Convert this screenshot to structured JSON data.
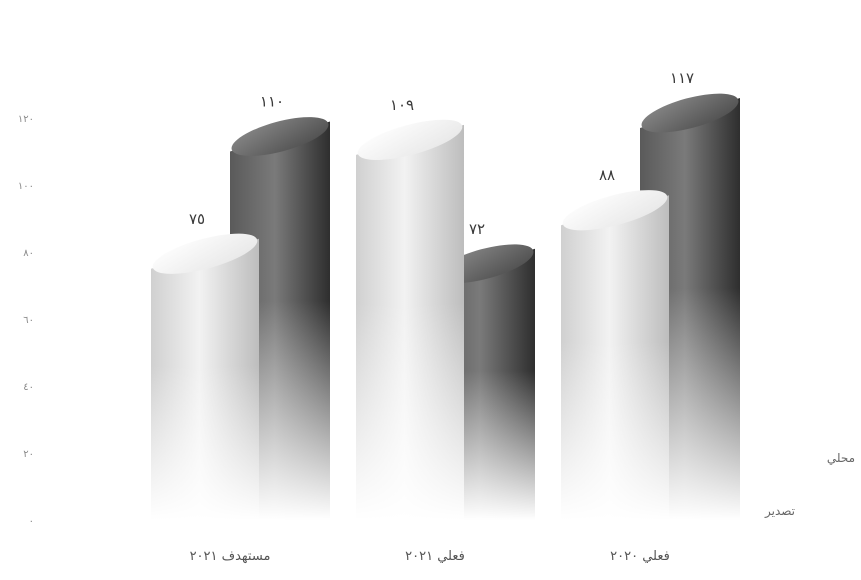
{
  "chart_data": {
    "type": "bar",
    "style": "3d-cylinder",
    "categories": [
      "فعلي ٢٠٢٠",
      "فعلي ٢٠٢١",
      "مستهدف ٢٠٢١"
    ],
    "series": [
      {
        "name": "محلي",
        "values": [
          117,
          72,
          110
        ],
        "labels": [
          "١١٧",
          "٧٢",
          "١١٠"
        ],
        "color": "#4a4a4a"
      },
      {
        "name": "تصدير",
        "values": [
          88,
          109,
          75
        ],
        "labels": [
          "٨٨",
          "١٠٩",
          "٧٥"
        ],
        "color": "#d9d9d9"
      }
    ],
    "ylim": [
      0,
      120
    ],
    "yticks": [
      0,
      20,
      40,
      60,
      80,
      100,
      120
    ],
    "ytick_labels": [
      "٠",
      "٢٠",
      "٤٠",
      "٦٠",
      "٨٠",
      "١٠٠",
      "١٢٠"
    ],
    "grid": false,
    "legend": "right"
  }
}
